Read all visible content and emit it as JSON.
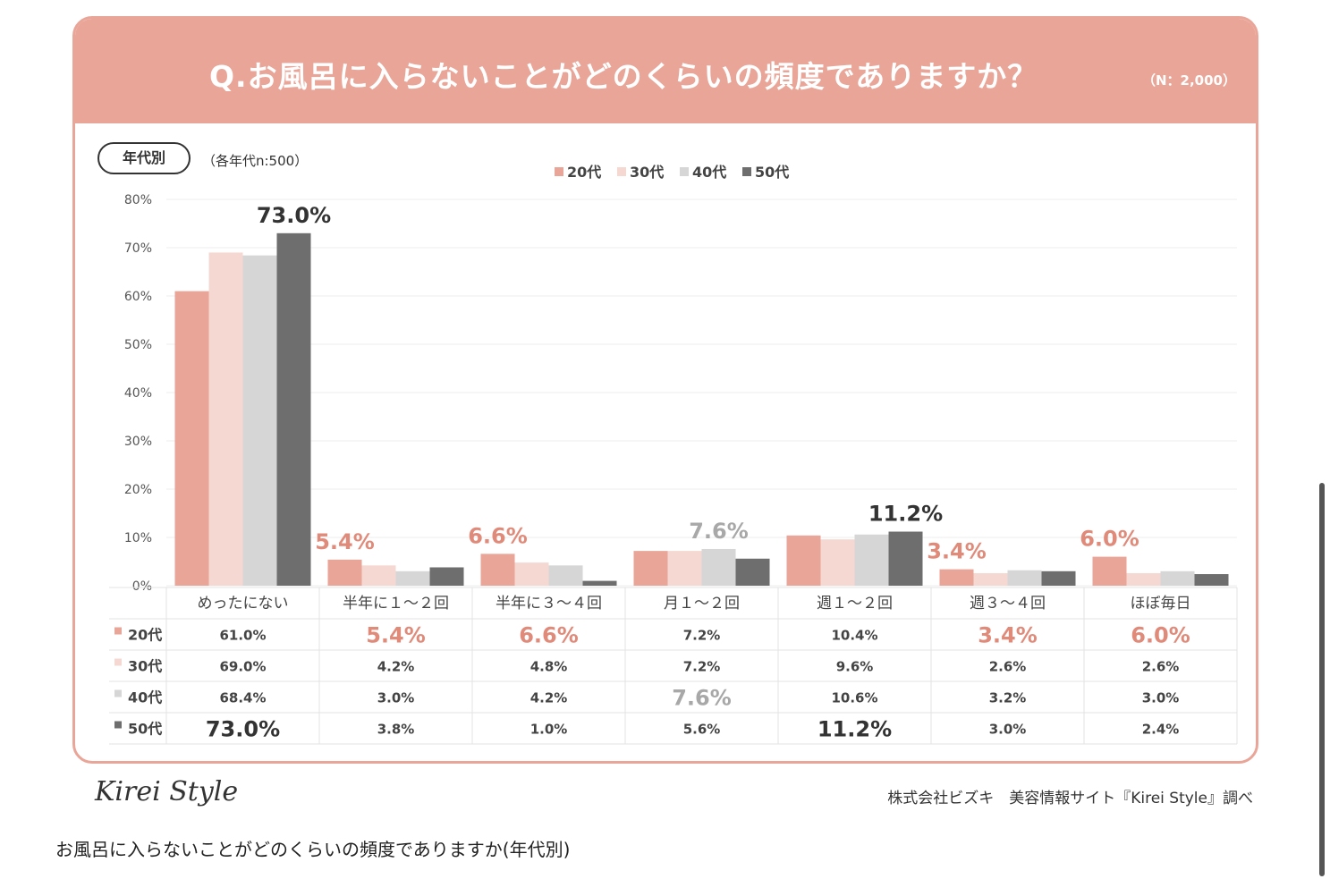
{
  "header": {
    "question": "Q.お風呂に入らないことがどのくらいの頻度でありますか？",
    "sample_note": "（N：2,000）"
  },
  "segment": {
    "label": "年代別",
    "note": "（各年代n:500）"
  },
  "footer": {
    "brand": "Kirei Style",
    "source": "株式会社ビズキ　美容情報サイト『Kirei Style』調べ"
  },
  "caption": "お風呂に入らないことがどのくらいの頻度でありますか(年代別)",
  "chart_data": {
    "type": "bar",
    "categories": [
      "めったにない",
      "半年に１～２回",
      "半年に３～４回",
      "月１～２回",
      "週１～２回",
      "週３～４回",
      "ほぼ毎日"
    ],
    "series": [
      {
        "name": "20代",
        "color": "#e9a597",
        "values": [
          61.0,
          5.4,
          6.6,
          7.2,
          10.4,
          3.4,
          6.0
        ]
      },
      {
        "name": "30代",
        "color": "#f5d8d2",
        "values": [
          69.0,
          4.2,
          4.8,
          7.2,
          9.6,
          2.6,
          2.6
        ]
      },
      {
        "name": "40代",
        "color": "#d6d6d6",
        "values": [
          68.4,
          3.0,
          4.2,
          7.6,
          10.6,
          3.2,
          3.0
        ]
      },
      {
        "name": "50代",
        "color": "#6e6e6e",
        "values": [
          73.0,
          3.8,
          1.0,
          5.6,
          11.2,
          3.0,
          2.4
        ]
      }
    ],
    "table_values": [
      [
        "61.0%",
        "5.4%",
        "6.6%",
        "7.2%",
        "10.4%",
        "3.4%",
        "6.0%"
      ],
      [
        "69.0%",
        "4.2%",
        "4.8%",
        "7.2%",
        "9.6%",
        "2.6%",
        "2.6%"
      ],
      [
        "68.4%",
        "3.0%",
        "4.2%",
        "7.6%",
        "10.6%",
        "3.2%",
        "3.0%"
      ],
      [
        "73.0%",
        "3.8%",
        "1.0%",
        "5.6%",
        "11.2%",
        "3.0%",
        "2.4%"
      ]
    ],
    "highlights": [
      {
        "category": 0,
        "series": 3,
        "label": "73.0%",
        "color": "#333333"
      },
      {
        "category": 1,
        "series": 0,
        "label": "5.4%",
        "color": "#e08a7a"
      },
      {
        "category": 2,
        "series": 0,
        "label": "6.6%",
        "color": "#e08a7a"
      },
      {
        "category": 3,
        "series": 2,
        "label": "7.6%",
        "color": "#a8a8a8"
      },
      {
        "category": 4,
        "series": 3,
        "label": "11.2%",
        "color": "#333333"
      },
      {
        "category": 5,
        "series": 0,
        "label": "3.4%",
        "color": "#e08a7a"
      },
      {
        "category": 6,
        "series": 0,
        "label": "6.0%",
        "color": "#e08a7a"
      }
    ],
    "y_ticks": [
      "0%",
      "10%",
      "20%",
      "30%",
      "40%",
      "50%",
      "60%",
      "70%",
      "80%"
    ],
    "ylim": [
      0,
      80
    ],
    "grid": true,
    "legend": "top-center"
  }
}
